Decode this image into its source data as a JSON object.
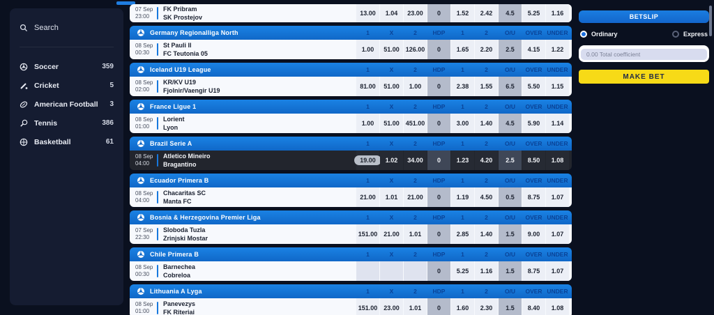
{
  "sidebar": {
    "search": {
      "label": "Search",
      "icon": "search-icon"
    },
    "sports": [
      {
        "label": "Soccer",
        "count": "359",
        "icon": "soccer-icon"
      },
      {
        "label": "Cricket",
        "count": "5",
        "icon": "cricket-icon"
      },
      {
        "label": "American Football",
        "count": "3",
        "icon": "american-football-icon"
      },
      {
        "label": "Tennis",
        "count": "386",
        "icon": "tennis-icon"
      },
      {
        "label": "Basketball",
        "count": "61",
        "icon": "basketball-icon"
      }
    ]
  },
  "main": {
    "columns": [
      "1",
      "X",
      "2",
      "HDP",
      "1",
      "2",
      "O/U",
      "OVER",
      "UNDER"
    ],
    "leagues": [
      {
        "name": "",
        "icon": "soccer-ball-icon",
        "rows": [
          {
            "date": "07 Sep",
            "time": "23:00",
            "home": "FK Pribram",
            "away": "SK Prostejov",
            "odds": [
              "13.00",
              "1.04",
              "23.00",
              "0",
              "1.52",
              "2.42",
              "4.5",
              "5.25",
              "1.16"
            ]
          }
        ]
      },
      {
        "name": "Germany Regionalliga North",
        "icon": "soccer-ball-icon",
        "rows": [
          {
            "date": "08 Sep",
            "time": "00:30",
            "home": "St Pauli II",
            "away": "FC Teutonia 05",
            "odds": [
              "1.00",
              "51.00",
              "126.00",
              "0",
              "1.65",
              "2.20",
              "2.5",
              "4.15",
              "1.22"
            ]
          }
        ]
      },
      {
        "name": "Iceland U19 League",
        "icon": "soccer-ball-icon",
        "rows": [
          {
            "date": "08 Sep",
            "time": "02:00",
            "home": "KR/KV U19",
            "away": "Fjolnir/Vaengir U19",
            "odds": [
              "81.00",
              "51.00",
              "1.00",
              "0",
              "2.38",
              "1.55",
              "6.5",
              "5.50",
              "1.15"
            ]
          }
        ]
      },
      {
        "name": "France Ligue 1",
        "icon": "soccer-ball-icon",
        "rows": [
          {
            "date": "08 Sep",
            "time": "01:00",
            "home": "Lorient",
            "away": "Lyon",
            "odds": [
              "1.00",
              "51.00",
              "451.00",
              "0",
              "3.00",
              "1.40",
              "4.5",
              "5.90",
              "1.14"
            ]
          }
        ]
      },
      {
        "name": "Brazil Serie A",
        "icon": "soccer-ball-icon",
        "rows": [
          {
            "date": "08 Sep",
            "time": "04:00",
            "home": "Atletico Mineiro",
            "away": "Bragantino",
            "odds": [
              "19.00",
              "1.02",
              "34.00",
              "0",
              "1.23",
              "4.20",
              "2.5",
              "8.50",
              "1.08"
            ],
            "selected": true,
            "picked": 0
          }
        ]
      },
      {
        "name": "Ecuador Primera B",
        "icon": "soccer-ball-icon",
        "rows": [
          {
            "date": "08 Sep",
            "time": "04:00",
            "home": "Chacaritas SC",
            "away": "Manta FC",
            "odds": [
              "21.00",
              "1.01",
              "21.00",
              "0",
              "1.19",
              "4.50",
              "0.5",
              "8.75",
              "1.07"
            ]
          }
        ]
      },
      {
        "name": "Bosnia & Herzegovina Premier Liga",
        "icon": "soccer-ball-icon",
        "rows": [
          {
            "date": "07 Sep",
            "time": "22:30",
            "home": "Sloboda Tuzla",
            "away": "Zrinjski Mostar",
            "odds": [
              "151.00",
              "21.00",
              "1.01",
              "0",
              "2.85",
              "1.40",
              "1.5",
              "9.00",
              "1.07"
            ]
          }
        ]
      },
      {
        "name": "Chile Primera B",
        "icon": "soccer-ball-icon",
        "rows": [
          {
            "date": "08 Sep",
            "time": "00:30",
            "home": "Barnechea",
            "away": "Cobreloa",
            "odds": [
              "",
              "",
              "",
              "0",
              "5.25",
              "1.16",
              "1.5",
              "8.75",
              "1.07"
            ]
          }
        ]
      },
      {
        "name": "Lithuania A Lyga",
        "icon": "soccer-ball-icon",
        "rows": [
          {
            "date": "08 Sep",
            "time": "01:00",
            "home": "Panevezys",
            "away": "FK Riteriai",
            "odds": [
              "151.00",
              "23.00",
              "1.01",
              "0",
              "1.60",
              "2.30",
              "1.5",
              "8.40",
              "1.08"
            ]
          }
        ]
      }
    ]
  },
  "betslip": {
    "title": "BETSLIP",
    "modes": [
      {
        "label": "Ordinary",
        "selected": true
      },
      {
        "label": "Express",
        "selected": false
      }
    ],
    "coefficient_value": "0.00 Total coefficient",
    "make_bet_label": "MAKE BET"
  },
  "colors": {
    "page_background": "#0a101f",
    "panel_background": "#151c31",
    "league_header_blue": "#1476d8",
    "column_label_blue": "#0a4397",
    "row_light": "#f7f9fd",
    "cell_shade": "#b4bbcb",
    "selected_row_dark": "#22252d",
    "pick_pill": "#b9bfc9",
    "betslip_blue": "#1673d2",
    "make_bet_yellow": "#f7da17"
  }
}
